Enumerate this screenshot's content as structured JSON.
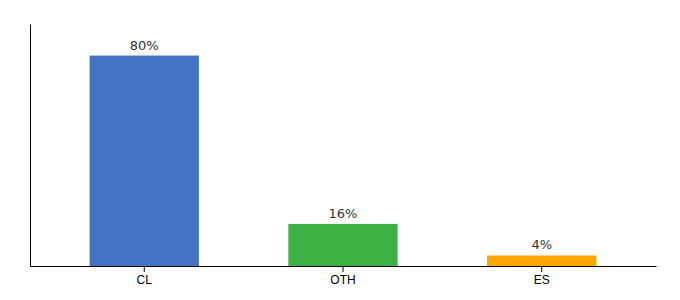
{
  "chart_data": {
    "type": "bar",
    "categories": [
      "CL",
      "OTH",
      "ES"
    ],
    "values": [
      80,
      16,
      4
    ],
    "value_labels": [
      "80%",
      "16%",
      "4%"
    ],
    "colors": [
      "#4472C4",
      "#3CB043",
      "#FFA500"
    ],
    "ylim": [
      0,
      92
    ],
    "data_labels": true,
    "tick_labels": "x",
    "grid": false
  }
}
